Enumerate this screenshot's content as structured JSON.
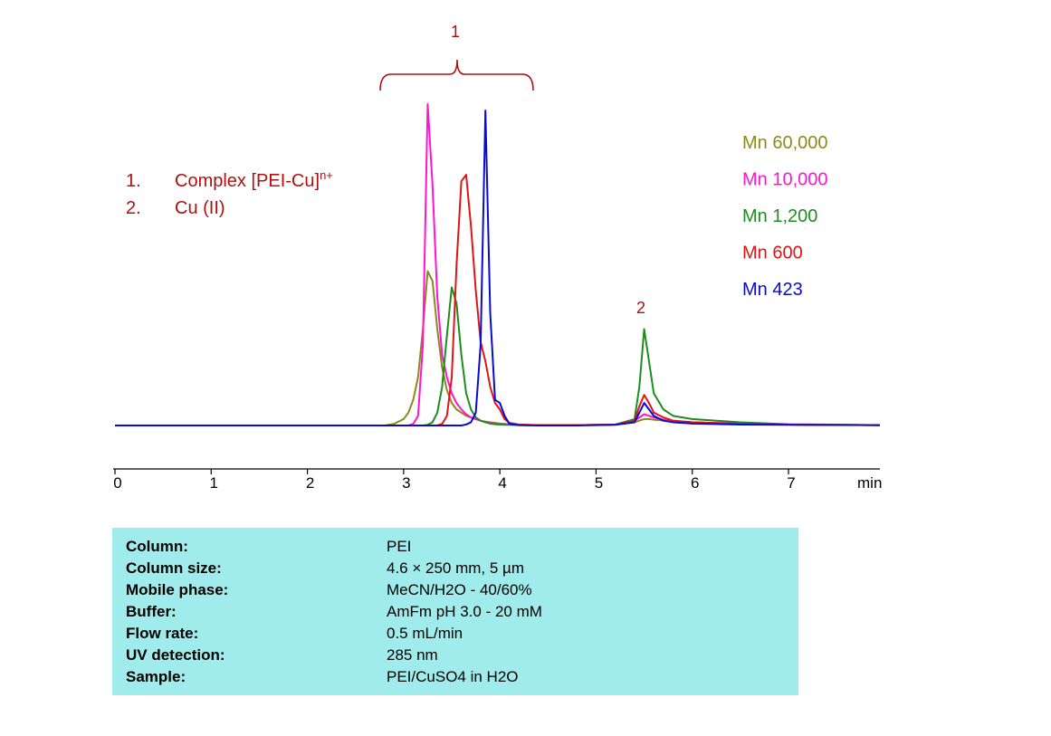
{
  "chart_data": {
    "type": "line",
    "x": [
      0,
      1,
      2,
      2.8,
      2.9,
      3.0,
      3.05,
      3.1,
      3.15,
      3.2,
      3.25,
      3.3,
      3.35,
      3.4,
      3.45,
      3.5,
      3.55,
      3.6,
      3.65,
      3.7,
      3.75,
      3.8,
      3.85,
      3.9,
      3.95,
      4.0,
      4.05,
      4.1,
      4.2,
      4.4,
      4.8,
      5.2,
      5.4,
      5.45,
      5.5,
      5.55,
      5.6,
      5.7,
      5.8,
      6.0,
      6.5,
      7.0,
      7.95
    ],
    "series": [
      {
        "name": "Mn 60,000",
        "color": "#8a8a1c",
        "values": [
          0,
          0,
          0,
          0,
          0.5,
          2,
          4,
          8,
          15,
          30,
          48,
          45,
          30,
          18,
          11,
          7,
          5,
          4,
          3,
          2.5,
          2,
          1.5,
          1.2,
          1,
          0.8,
          0.6,
          0.5,
          0.4,
          0.2,
          0.1,
          0.1,
          0.3,
          1,
          1.5,
          2,
          2,
          1.8,
          1.5,
          1.2,
          1,
          0.6,
          0.3,
          0.1
        ]
      },
      {
        "name": "Mn 10,000",
        "color": "#ff14d2",
        "values": [
          0,
          0,
          0,
          0,
          0,
          0,
          0,
          0.5,
          3,
          25,
          100,
          75,
          40,
          22,
          15,
          10,
          7,
          5,
          3.5,
          2.5,
          2,
          1.5,
          1,
          0.8,
          0.6,
          0.5,
          0.4,
          0.3,
          0.2,
          0.1,
          0.1,
          0.3,
          1.5,
          2.5,
          3.5,
          3,
          2.5,
          1.8,
          1.3,
          1,
          0.6,
          0.3,
          0.1
        ]
      },
      {
        "name": "Mn 1,200",
        "color": "#1e8c1e",
        "values": [
          0,
          0,
          0,
          0,
          0,
          0,
          0,
          0,
          0,
          0,
          0.2,
          1,
          4,
          12,
          28,
          43,
          38,
          22,
          10,
          5,
          2.5,
          1.5,
          1,
          0.6,
          0.4,
          0.3,
          0.2,
          0.2,
          0.1,
          0.1,
          0.1,
          0.3,
          2,
          12,
          30,
          20,
          10,
          5,
          3,
          2,
          1,
          0.4,
          0.1
        ]
      },
      {
        "name": "Mn 600",
        "color": "#e01414",
        "values": [
          0,
          0,
          0,
          0,
          0,
          0,
          0,
          0,
          0,
          0,
          0,
          0,
          0,
          0.5,
          3,
          15,
          50,
          76,
          78,
          62,
          42,
          26,
          20,
          12,
          7,
          5,
          2,
          0.8,
          0.3,
          0.1,
          0.1,
          0.3,
          1.5,
          6,
          9.5,
          7,
          4,
          2.5,
          1.5,
          1,
          0.5,
          0.3,
          0.1
        ]
      },
      {
        "name": "Mn 423",
        "color": "#0a0ad2",
        "values": [
          0,
          0,
          0,
          0,
          0,
          0,
          0,
          0,
          0,
          0,
          0,
          0,
          0,
          0,
          0,
          0,
          0,
          0,
          0.3,
          1,
          4,
          25,
          98,
          35,
          8,
          7,
          3,
          0.5,
          0.1,
          0,
          0,
          0.2,
          1,
          4,
          7,
          5,
          3,
          1.5,
          1,
          0.6,
          0.3,
          0.2,
          0.1
        ]
      }
    ],
    "xlim": [
      0,
      7.95
    ],
    "ylim": [
      0,
      100
    ],
    "xticks": [
      0,
      1,
      2,
      3,
      4,
      5,
      6,
      7
    ],
    "xlabel": "min",
    "annotations": [
      "1",
      "2"
    ],
    "notes": [
      {
        "number": "1.",
        "text": "Complex [PEI-Cu]",
        "sup": "n+"
      },
      {
        "number": "2.",
        "text": "Cu (II)"
      }
    ]
  },
  "table": {
    "rows": [
      [
        "Column:",
        "PEI"
      ],
      [
        "Column size:",
        "4.6 × 250 mm, 5 µm"
      ],
      [
        "Mobile phase:",
        "MeCN/H2O - 40/60%"
      ],
      [
        "Buffer:",
        "AmFm pH 3.0 - 20 mM"
      ],
      [
        "Flow rate:",
        "0.5 mL/min"
      ],
      [
        "UV detection:",
        "285 nm"
      ],
      [
        "Sample:",
        "PEI/CuSO4 in H2O"
      ]
    ]
  }
}
